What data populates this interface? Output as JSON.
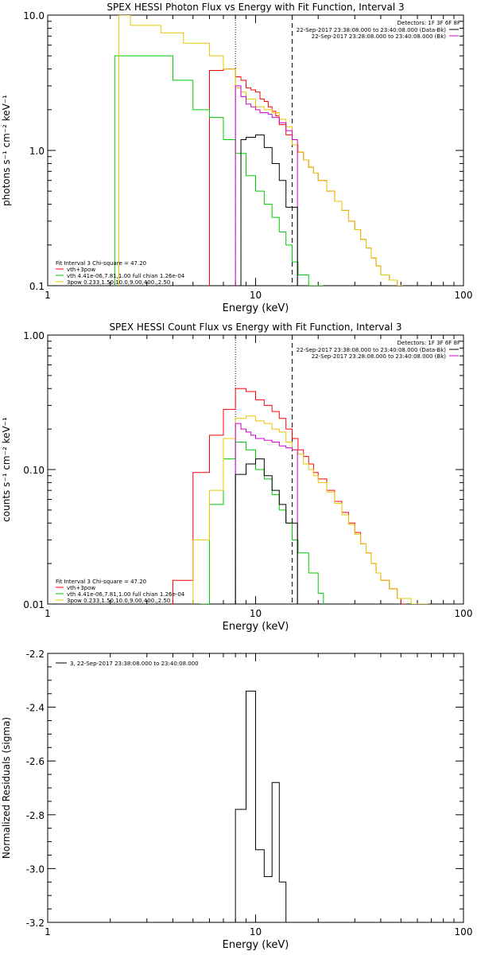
{
  "chart_data": [
    {
      "type": "line",
      "title": "SPEX HESSI Photon Flux vs Energy with Fit Function, Interval 3",
      "xlabel": "Energy (keV)",
      "ylabel": "photons s⁻¹ cm⁻² keV⁻¹",
      "xscale": "log",
      "yscale": "log",
      "xlim": [
        1,
        100
      ],
      "ylim": [
        0.1,
        10.0
      ],
      "x_ticks": [
        {
          "v": 1,
          "label": "1"
        },
        {
          "v": 10,
          "label": "10"
        },
        {
          "v": 100,
          "label": "100"
        }
      ],
      "y_ticks": [
        {
          "v": 0.1,
          "label": "0.1"
        },
        {
          "v": 1.0,
          "label": "1.0"
        },
        {
          "v": 10.0,
          "label": "10.0"
        }
      ],
      "fit_boundaries_keV": [
        8,
        15
      ],
      "detectors_label": "Detectors: 1F 3F 6F 8F",
      "legend_right": [
        {
          "text": "22-Sep-2017 23:38:08.000 to 23:40:08.000 (Data-Bk)",
          "color": "#000000"
        },
        {
          "text": "22-Sep-2017 23:28:08.000 to 23:40:08.000 (Bk)",
          "color": "#cc00cc"
        }
      ],
      "fit_header": "Fit Interval 3   Chi-square = 47.20",
      "legend_left": [
        {
          "text": "vth+3pow",
          "color": "#ff0000"
        },
        {
          "text": "vth 4.41e-06,7.81,1.00  full chian 1.26e-04",
          "color": "#00cc00"
        },
        {
          "text": "3pow 0.233,1.50,10.0,9.00,400.,2.50",
          "color": "#e6c800"
        }
      ],
      "series": [
        {
          "name": "vth+3pow",
          "color": "#ff0000",
          "x": [
            6,
            6.5,
            7,
            7.5,
            8,
            8.5,
            9,
            9.5,
            10,
            10.5,
            11,
            11.5,
            12,
            12.5,
            13,
            14,
            15,
            16,
            17,
            18,
            19,
            20,
            22,
            24,
            26,
            28,
            30,
            32,
            34,
            36,
            38,
            40,
            44,
            48
          ],
          "y": [
            3.9,
            3.9,
            4.0,
            4.0,
            3.5,
            3.3,
            2.9,
            2.8,
            2.7,
            2.4,
            2.3,
            2.1,
            1.95,
            1.8,
            1.55,
            1.3,
            1.1,
            0.97,
            0.85,
            0.75,
            0.68,
            0.6,
            0.5,
            0.42,
            0.36,
            0.3,
            0.26,
            0.22,
            0.19,
            0.16,
            0.14,
            0.12,
            0.11,
            0.1
          ]
        },
        {
          "name": "vth",
          "color": "#00cc00",
          "x": [
            2.1,
            3,
            4,
            5,
            6,
            7,
            8,
            9,
            10,
            11,
            12,
            13,
            14,
            15,
            16,
            18,
            20
          ],
          "y": [
            5.0,
            5.0,
            3.3,
            2.0,
            1.75,
            1.2,
            0.95,
            0.65,
            0.5,
            0.4,
            0.32,
            0.25,
            0.2,
            0.15,
            0.12,
            0.1,
            0.1
          ]
        },
        {
          "name": "3pow",
          "color": "#e6c800",
          "x": [
            2.2,
            2.5,
            3,
            3.5,
            4,
            4.5,
            5,
            6,
            7,
            8,
            8.5,
            9,
            9.5,
            10,
            11,
            12,
            13,
            14,
            15,
            16,
            17,
            18,
            19,
            20,
            22,
            24,
            26,
            28,
            30,
            32,
            34,
            36,
            38,
            40,
            44,
            48
          ],
          "y": [
            10,
            8.4,
            8.4,
            7.4,
            7.4,
            6.2,
            6.2,
            5.0,
            4.0,
            2.9,
            2.7,
            2.4,
            2.4,
            2.1,
            2.0,
            1.9,
            1.7,
            1.5,
            1.1,
            0.97,
            0.85,
            0.75,
            0.68,
            0.6,
            0.5,
            0.42,
            0.36,
            0.3,
            0.26,
            0.22,
            0.19,
            0.16,
            0.14,
            0.12,
            0.11,
            0.1
          ]
        },
        {
          "name": "Bk",
          "color": "#cc00cc",
          "x": [
            8,
            8.5,
            9,
            9.5,
            10,
            10.5,
            11,
            11.5,
            12,
            13,
            14,
            15
          ],
          "y": [
            3.0,
            2.5,
            2.2,
            2.1,
            2.0,
            1.9,
            1.9,
            1.85,
            1.75,
            1.6,
            1.4,
            1.2
          ]
        },
        {
          "name": "Data-Bk",
          "color": "#000000",
          "x": [
            8.5,
            9,
            10,
            11,
            12,
            13,
            14,
            15
          ],
          "y": [
            1.2,
            1.25,
            1.3,
            1.05,
            0.8,
            0.6,
            0.38,
            0.38
          ]
        }
      ]
    },
    {
      "type": "line",
      "title": "SPEX HESSI Count Flux vs Energy with Fit Function, Interval 3",
      "xlabel": "Energy (keV)",
      "ylabel": "counts s⁻¹ cm⁻² keV⁻¹",
      "xscale": "log",
      "yscale": "log",
      "xlim": [
        1,
        100
      ],
      "ylim": [
        0.01,
        1.0
      ],
      "x_ticks": [
        {
          "v": 1,
          "label": "1"
        },
        {
          "v": 10,
          "label": "10"
        },
        {
          "v": 100,
          "label": "100"
        }
      ],
      "y_ticks": [
        {
          "v": 0.01,
          "label": "0.01"
        },
        {
          "v": 0.1,
          "label": "0.10"
        },
        {
          "v": 1.0,
          "label": "1.00"
        }
      ],
      "fit_boundaries_keV": [
        8,
        15
      ],
      "detectors_label": "Detectors: 1F 3F 6F 8F",
      "legend_right": [
        {
          "text": "22-Sep-2017 23:38:08.000 to 23:40:08.000 (Data-Bk)",
          "color": "#000000"
        },
        {
          "text": "22-Sep-2017 23:28:08.000 to 23:40:08.000 (Bk)",
          "color": "#cc00cc"
        }
      ],
      "fit_header": "Fit Interval 3   Chi-square = 47.20",
      "legend_left": [
        {
          "text": "vth+3pow",
          "color": "#ff0000"
        },
        {
          "text": "vth 4.41e-06,7.81,1.00  full chian 1.26e-04",
          "color": "#00cc00"
        },
        {
          "text": "3pow 0.233,1.50,10.0,9.00,400.,2.50",
          "color": "#e6c800"
        }
      ],
      "series": [
        {
          "name": "vth+3pow",
          "color": "#ff0000",
          "x": [
            4,
            5,
            6,
            7,
            8,
            9,
            10,
            11,
            12,
            13,
            14,
            15,
            16,
            17,
            18,
            19,
            20,
            22,
            24,
            26,
            28,
            30,
            32,
            34,
            36,
            38,
            40,
            44,
            48,
            50
          ],
          "y": [
            0.015,
            0.095,
            0.18,
            0.28,
            0.4,
            0.38,
            0.33,
            0.3,
            0.27,
            0.24,
            0.2,
            0.17,
            0.14,
            0.125,
            0.11,
            0.095,
            0.085,
            0.07,
            0.058,
            0.048,
            0.04,
            0.034,
            0.028,
            0.024,
            0.02,
            0.017,
            0.015,
            0.013,
            0.011,
            0.01
          ]
        },
        {
          "name": "vth",
          "color": "#00cc00",
          "x": [
            5.4,
            6,
            7,
            8,
            9,
            10,
            11,
            12,
            13,
            14,
            15,
            16,
            18,
            20
          ],
          "y": [
            0.01,
            0.055,
            0.12,
            0.16,
            0.14,
            0.1,
            0.085,
            0.065,
            0.05,
            0.04,
            0.03,
            0.024,
            0.017,
            0.012
          ]
        },
        {
          "name": "3pow",
          "color": "#e6c800",
          "x": [
            5,
            6,
            7,
            8,
            9,
            10,
            11,
            12,
            13,
            14,
            15,
            16,
            17,
            18,
            19,
            20,
            22,
            24,
            26,
            28,
            30,
            32,
            34,
            36,
            38,
            40,
            44,
            48,
            56,
            64
          ],
          "y": [
            0.03,
            0.07,
            0.17,
            0.24,
            0.25,
            0.23,
            0.22,
            0.2,
            0.19,
            0.16,
            0.14,
            0.13,
            0.11,
            0.1,
            0.09,
            0.08,
            0.068,
            0.056,
            0.046,
            0.039,
            0.033,
            0.028,
            0.024,
            0.02,
            0.017,
            0.015,
            0.013,
            0.011,
            0.01,
            0.01
          ]
        },
        {
          "name": "Bk",
          "color": "#cc00cc",
          "x": [
            8,
            8.5,
            9,
            9.5,
            10,
            11,
            12,
            13,
            14,
            15
          ],
          "y": [
            0.22,
            0.2,
            0.19,
            0.18,
            0.17,
            0.165,
            0.16,
            0.15,
            0.145,
            0.14
          ]
        },
        {
          "name": "Data-Bk",
          "color": "#000000",
          "x": [
            8,
            9,
            10,
            11,
            12,
            13,
            14,
            15
          ],
          "y": [
            0.092,
            0.11,
            0.12,
            0.09,
            0.07,
            0.055,
            0.04,
            0.04
          ]
        }
      ]
    },
    {
      "type": "line",
      "title": "",
      "xlabel": "Energy (keV)",
      "ylabel": "Normalized Residuals (sigma)",
      "xscale": "log",
      "yscale": "linear",
      "xlim": [
        1,
        100
      ],
      "ylim": [
        -3.2,
        -2.2
      ],
      "x_ticks": [
        {
          "v": 1,
          "label": "1"
        },
        {
          "v": 10,
          "label": "10"
        },
        {
          "v": 100,
          "label": "100"
        }
      ],
      "y_ticks": [
        {
          "v": -2.2,
          "label": "-2.2"
        },
        {
          "v": -2.4,
          "label": "-2.4"
        },
        {
          "v": -2.6,
          "label": "-2.6"
        },
        {
          "v": -2.8,
          "label": "-2.8"
        },
        {
          "v": -3.0,
          "label": "-3.0"
        },
        {
          "v": -3.2,
          "label": "-3.2"
        }
      ],
      "legend": [
        {
          "text": "3, 22-Sep-2017 23:38:08.000 to 23:40:08.000",
          "color": "#000000"
        }
      ],
      "series": [
        {
          "name": "3, 22-Sep-2017 23:38:08.000 to 23:40:08.000",
          "color": "#000000",
          "x": [
            8,
            9,
            10,
            11,
            12,
            13,
            14,
            15
          ],
          "y": [
            -2.78,
            -2.34,
            -2.93,
            -3.03,
            -2.68,
            -3.05,
            -3.2,
            -3.2
          ],
          "x_start": 8
        }
      ]
    }
  ]
}
